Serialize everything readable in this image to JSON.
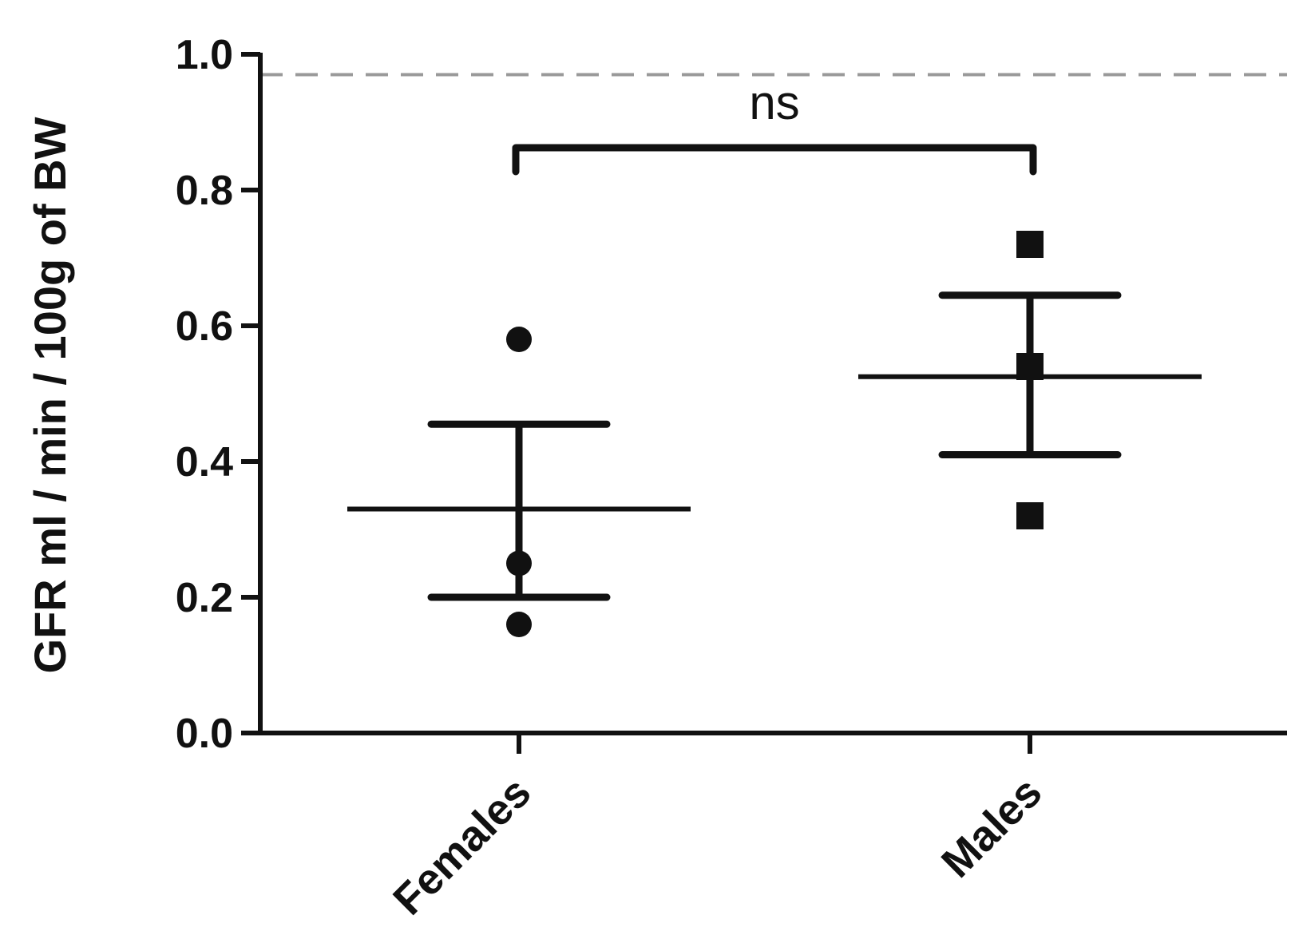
{
  "chart_data": {
    "type": "scatter",
    "ylabel": "GFR ml / min / 100g of BW",
    "xlabel": "",
    "ylim": [
      0.0,
      1.0
    ],
    "yticks": [
      "0.0",
      "0.2",
      "0.4",
      "0.6",
      "0.8",
      "1.0"
    ],
    "categories": [
      "Females",
      "Males"
    ],
    "reference_line": {
      "y": 0.97,
      "style": "dashed",
      "color": "#999999"
    },
    "series": [
      {
        "category": "Females",
        "marker": "circle",
        "points": [
          0.58,
          0.25,
          0.16
        ],
        "mean": 0.33,
        "error_upper": 0.455,
        "error_lower": 0.2
      },
      {
        "category": "Males",
        "marker": "square",
        "points": [
          0.72,
          0.54,
          0.32
        ],
        "mean": 0.525,
        "error_upper": 0.645,
        "error_lower": 0.41
      }
    ],
    "significance": {
      "label": "ns",
      "between": [
        "Females",
        "Males"
      ],
      "y": 0.82
    },
    "grid": false,
    "colors": {
      "ink": "#111111",
      "reference": "#999999"
    }
  }
}
